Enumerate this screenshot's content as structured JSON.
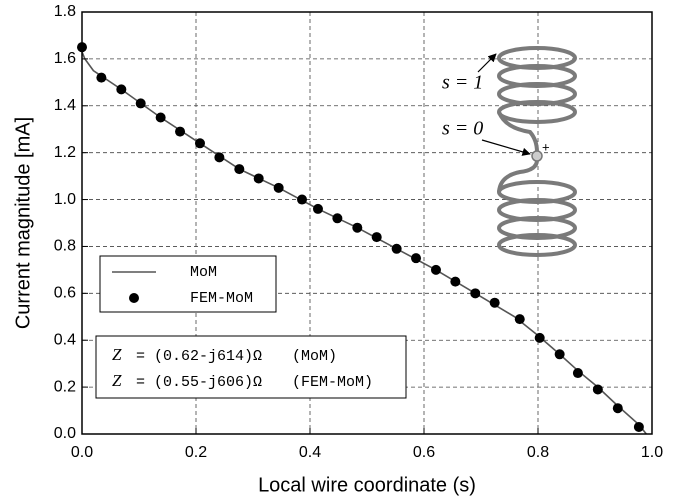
{
  "chart_data": {
    "type": "line",
    "xlabel": "Local wire coordinate (s)",
    "ylabel": "Current magnitude [mA]",
    "xlim": [
      0,
      1
    ],
    "ylim": [
      0,
      1.8
    ],
    "xticks": [
      {
        "value": 0,
        "label": "0.0"
      },
      0.2,
      0.4,
      0.6,
      0.8,
      {
        "value": 1,
        "label": "1.0"
      }
    ],
    "yticks": [
      {
        "value": 0,
        "label": "0.0"
      },
      0.2,
      0.4,
      0.6,
      0.8,
      {
        "value": 1,
        "label": "1.0"
      },
      1.2,
      1.4,
      1.6,
      1.8
    ],
    "grid": true,
    "series": [
      {
        "name": "MoM",
        "color": "#555555",
        "style": "line",
        "x": [
          0,
          0.005,
          0.02,
          0.069,
          0.138,
          0.207,
          0.276,
          0.345,
          0.414,
          0.483,
          0.552,
          0.621,
          0.69,
          0.759,
          0.8,
          0.838,
          0.87,
          0.905,
          0.94,
          0.977,
          0.99
        ],
        "values": [
          1.63,
          1.6,
          1.55,
          1.47,
          1.35,
          1.24,
          1.13,
          1.05,
          0.96,
          0.88,
          0.79,
          0.7,
          0.6,
          0.5,
          0.42,
          0.34,
          0.27,
          0.2,
          0.12,
          0.04,
          0.0
        ]
      },
      {
        "name": "FEM-MoM",
        "color": "#000000",
        "style": "marker",
        "x": [
          0,
          0.034,
          0.069,
          0.103,
          0.138,
          0.172,
          0.207,
          0.241,
          0.276,
          0.31,
          0.345,
          0.386,
          0.414,
          0.448,
          0.483,
          0.517,
          0.552,
          0.586,
          0.621,
          0.655,
          0.69,
          0.724,
          0.768,
          0.803,
          0.838,
          0.87,
          0.905,
          0.94,
          0.977
        ],
        "values": [
          1.65,
          1.52,
          1.47,
          1.41,
          1.35,
          1.29,
          1.24,
          1.18,
          1.13,
          1.09,
          1.05,
          1.0,
          0.96,
          0.92,
          0.88,
          0.84,
          0.79,
          0.75,
          0.7,
          0.65,
          0.6,
          0.56,
          0.49,
          0.41,
          0.34,
          0.26,
          0.19,
          0.11,
          0.03
        ]
      }
    ],
    "impedances": [
      {
        "symbol": "Z",
        "expr": "= (0.62-j614)Ω",
        "method": "(MoM)"
      },
      {
        "symbol": "Z",
        "expr": "= (0.55-j606)Ω",
        "method": "(FEM-MoM)"
      }
    ],
    "annotations": {
      "s1": "s = 1",
      "s0": "s = 0",
      "feed": "+"
    }
  }
}
